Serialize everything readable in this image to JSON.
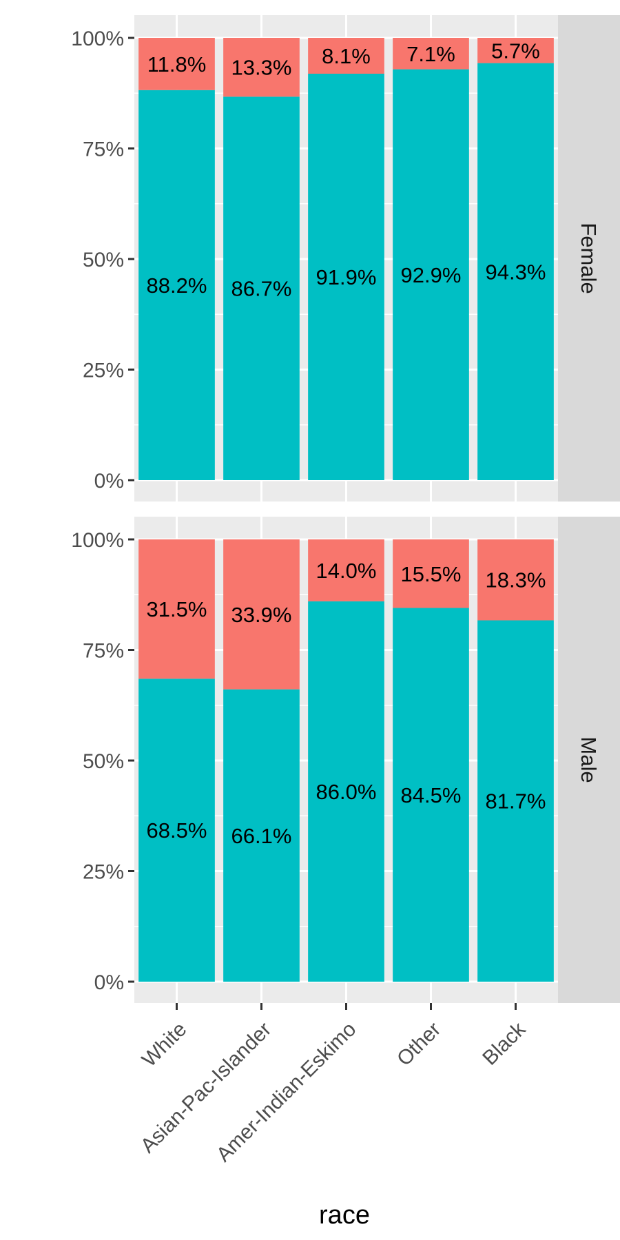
{
  "chart_data": {
    "type": "bar",
    "stacked": true,
    "position": "fill",
    "categories": [
      "White",
      "Asian-Pac-Islander",
      "Amer-Indian-Eskimo",
      "Other",
      "Black"
    ],
    "xlabel": "race",
    "ylabel": "",
    "ylim": [
      0,
      1
    ],
    "y_ticks": [
      "0%",
      "25%",
      "50%",
      "75%",
      "100%"
    ],
    "legend": "none",
    "grid": true,
    "colors": {
      "upper": "#F8766D",
      "lower": "#00BFC4",
      "panel_bg": "#EBEBEB",
      "strip_bg": "#D9D9D9"
    },
    "facets": [
      {
        "label": "Female",
        "upper_values": [
          0.118,
          0.133,
          0.081,
          0.071,
          0.057
        ],
        "lower_values": [
          0.882,
          0.867,
          0.919,
          0.929,
          0.943
        ],
        "upper_labels": [
          "11.8%",
          "13.3%",
          "8.1%",
          "7.1%",
          "5.7%"
        ],
        "lower_labels": [
          "88.2%",
          "86.7%",
          "91.9%",
          "92.9%",
          "94.3%"
        ]
      },
      {
        "label": "Male",
        "upper_values": [
          0.315,
          0.339,
          0.14,
          0.155,
          0.183
        ],
        "lower_values": [
          0.685,
          0.661,
          0.86,
          0.845,
          0.817
        ],
        "upper_labels": [
          "31.5%",
          "33.9%",
          "14.0%",
          "15.5%",
          "18.3%"
        ],
        "lower_labels": [
          "68.5%",
          "66.1%",
          "86.0%",
          "84.5%",
          "81.7%"
        ]
      }
    ]
  }
}
